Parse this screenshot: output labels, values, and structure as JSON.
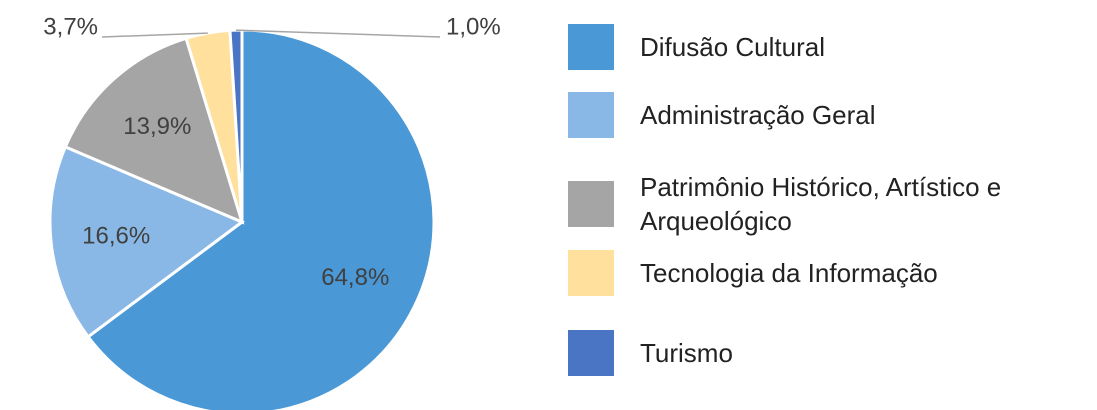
{
  "chart_data": {
    "type": "pie",
    "categories": [
      "Difusão Cultural",
      "Administração Geral",
      "Patrimônio Histórico, Artístico e Arqueológico",
      "Tecnologia da Informação",
      "Turismo"
    ],
    "values": [
      64.8,
      16.6,
      13.9,
      3.7,
      1.0
    ],
    "value_labels": [
      "64,8%",
      "16,6%",
      "13,9%",
      "3,7%",
      "1,0%"
    ],
    "colors": [
      "#4a98d6",
      "#8ab8e6",
      "#a5a5a5",
      "#ffe09c",
      "#4a74c4"
    ]
  }
}
